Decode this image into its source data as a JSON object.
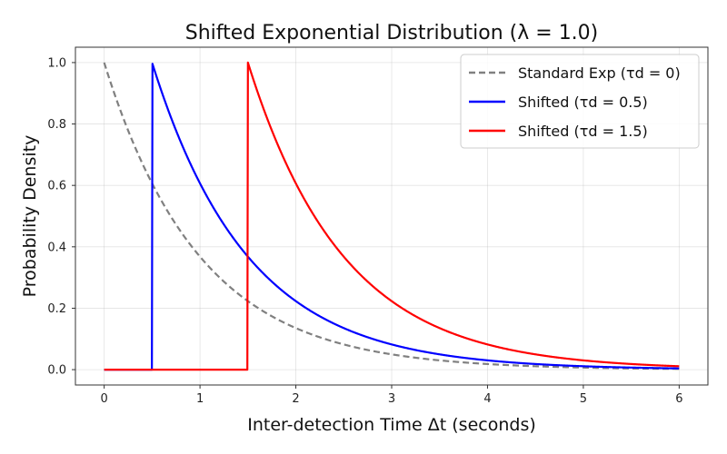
{
  "chart_data": {
    "type": "line",
    "title": "Shifted Exponential Distribution (λ = 1.0)",
    "xlabel": "Inter-detection Time Δt (seconds)",
    "ylabel": "Probability Density",
    "xlim": [
      -0.3,
      6.3
    ],
    "ylim": [
      -0.05,
      1.05
    ],
    "xticks": [
      0,
      1,
      2,
      3,
      4,
      5,
      6
    ],
    "xtick_labels": [
      "0",
      "1",
      "2",
      "3",
      "4",
      "5",
      "6"
    ],
    "yticks": [
      0.0,
      0.2,
      0.4,
      0.6,
      0.8,
      1.0
    ],
    "ytick_labels": [
      "0.0",
      "0.2",
      "0.4",
      "0.6",
      "0.8",
      "1.0"
    ],
    "grid": true,
    "legend_position": "top-right",
    "lambda": 1.0,
    "x_range": [
      0,
      6
    ],
    "series": [
      {
        "name": "Standard Exp (τd = 0)",
        "shift": 0.0,
        "color": "#808080",
        "style": "dashed"
      },
      {
        "name": "Shifted (τd = 0.5)",
        "shift": 0.5,
        "color": "#0000ff",
        "style": "solid"
      },
      {
        "name": "Shifted (τd = 1.5)",
        "shift": 1.5,
        "color": "#ff0000",
        "style": "solid"
      }
    ]
  }
}
